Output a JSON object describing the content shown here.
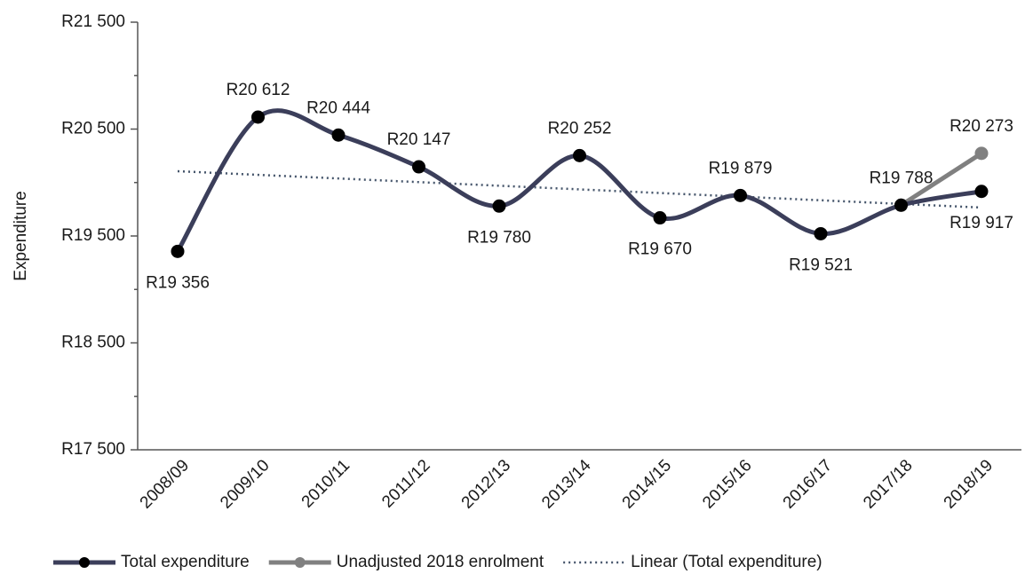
{
  "chart_data": {
    "type": "line",
    "y_label": "Expenditure",
    "categories": [
      "2008/09",
      "2009/10",
      "2010/11",
      "2011/12",
      "2012/13",
      "2013/14",
      "2014/15",
      "2015/16",
      "2016/17",
      "2017/18",
      "2018/19"
    ],
    "series": [
      {
        "name": "Total expenditure",
        "color": "#3b3e5a",
        "smooth": true,
        "values": [
          19356,
          20612,
          20444,
          20147,
          19780,
          20252,
          19670,
          19879,
          19521,
          19788,
          19917
        ],
        "value_labels": [
          "R19 356",
          "R20 612",
          "R20 444",
          "R20 147",
          "R19 780",
          "R20 252",
          "R19 670",
          "R19 879",
          "R19 521",
          "R19 788",
          "R19 917"
        ]
      },
      {
        "name": "Unadjusted 2018 enrolment",
        "color": "#808080",
        "smooth": false,
        "values": [
          null,
          null,
          null,
          null,
          null,
          null,
          null,
          null,
          null,
          19788,
          20273
        ],
        "value_labels": [
          null,
          null,
          null,
          null,
          null,
          null,
          null,
          null,
          null,
          null,
          "R20 273"
        ]
      }
    ],
    "trendline": {
      "name": "Linear (Total expenditure)",
      "color": "#44546a",
      "values": [
        20106,
        20072,
        20038,
        20004,
        19970,
        19936,
        19902,
        19868,
        19834,
        19800,
        19766
      ]
    },
    "ylim": [
      17500,
      21500
    ],
    "yticks": [
      {
        "value": 17500,
        "label": "R17 500"
      },
      {
        "value": 18500,
        "label": "R18 500"
      },
      {
        "value": 19500,
        "label": "R19 500"
      },
      {
        "value": 20500,
        "label": "R20 500"
      },
      {
        "value": 21500,
        "label": "R21 500"
      }
    ],
    "yminorticks": [
      18000,
      19000,
      20000,
      21000
    ],
    "grid": false,
    "legend": "bottom"
  }
}
